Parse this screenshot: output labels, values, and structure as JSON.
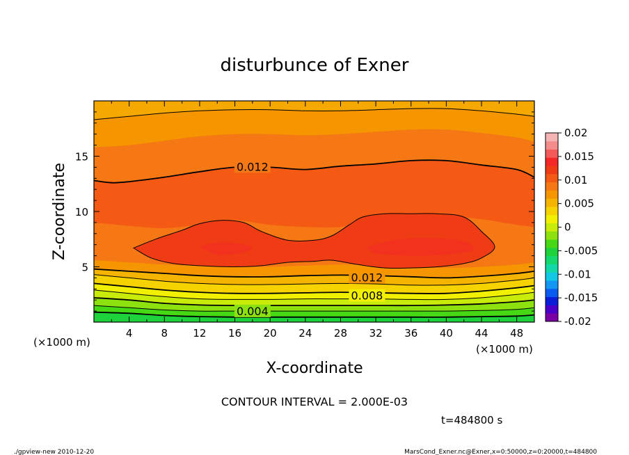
{
  "chart_data": {
    "type": "contour",
    "title": "disturbunce of Exner",
    "xlabel": "X-coordinate",
    "ylabel": "Z-coordinate",
    "x_unit_left": "(×1000 m)",
    "x_unit_right": "(×1000 m)",
    "xlim": [
      0,
      50
    ],
    "ylim": [
      0,
      20
    ],
    "x_ticks": [
      4,
      8,
      12,
      16,
      20,
      24,
      28,
      32,
      36,
      40,
      44,
      48
    ],
    "y_ticks": [
      5,
      10,
      15
    ],
    "colorbar_ticks": [
      "0.02",
      "0.015",
      "0.01",
      "0.005",
      "0",
      "-0.005",
      "-0.01",
      "-0.015",
      "-0.02"
    ],
    "colorbar_levels": [
      0.02,
      0.015,
      0.01,
      0.005,
      0,
      -0.005,
      -0.01,
      -0.015,
      -0.02
    ],
    "colorbar_range": [
      -0.02,
      0.02
    ],
    "colormap": [
      "#7b00a3",
      "#4a00c8",
      "#0a1ed8",
      "#0a5cf0",
      "#1496f5",
      "#10c8e6",
      "#12d8a8",
      "#14d86e",
      "#1ed23c",
      "#46d814",
      "#8ce10f",
      "#c8eb0a",
      "#f0f000",
      "#f5d200",
      "#f5b400",
      "#f59600",
      "#f57814",
      "#f55a14",
      "#f03c14",
      "#f52828",
      "#f55a5a",
      "#f58c8c",
      "#f5b4b4"
    ],
    "contour_interval": "CONTOUR INTERVAL = 2.000E-03",
    "contour_labels": [
      "0.012",
      "0.012",
      "0.008",
      "0.004"
    ],
    "time_label": "t=484800 s",
    "footer_left": "./gpview-new   2010-12-20",
    "footer_right": "MarsCond_Exner.nc@Exner,x=0:50000,z=0:20000,t=484800",
    "bands": [
      {
        "color": "#1ed23c",
        "z": [
          0.0,
          0.0,
          0.0,
          0.0,
          0.0,
          0.0,
          0.0,
          0.0,
          0.0,
          0.0,
          0.0,
          0.0,
          0.0,
          0.0
        ]
      },
      {
        "color": "#46d814",
        "z": [
          0.9,
          0.8,
          0.6,
          0.5,
          0.45,
          0.45,
          0.45,
          0.45,
          0.45,
          0.45,
          0.45,
          0.5,
          0.55,
          0.65
        ]
      },
      {
        "color": "#8ce10f",
        "z": [
          1.5,
          1.3,
          1.1,
          1.0,
          1.0,
          1.0,
          1.0,
          1.0,
          1.0,
          1.0,
          1.0,
          1.05,
          1.15,
          1.3
        ]
      },
      {
        "color": "#c8eb0a",
        "z": [
          2.2,
          2.0,
          1.7,
          1.55,
          1.5,
          1.5,
          1.5,
          1.5,
          1.5,
          1.5,
          1.55,
          1.65,
          1.85,
          2.0
        ]
      },
      {
        "color": "#f0f000",
        "z": [
          2.9,
          2.6,
          2.3,
          2.1,
          2.05,
          2.05,
          2.1,
          2.1,
          2.1,
          2.05,
          2.05,
          2.2,
          2.5,
          2.7
        ]
      },
      {
        "color": "#f5d200",
        "z": [
          3.5,
          3.2,
          2.9,
          2.7,
          2.6,
          2.6,
          2.65,
          2.7,
          2.65,
          2.6,
          2.6,
          2.8,
          3.1,
          3.3
        ]
      },
      {
        "color": "#f5b400",
        "z": [
          4.3,
          4.0,
          3.7,
          3.5,
          3.4,
          3.4,
          3.45,
          3.5,
          3.45,
          3.35,
          3.35,
          3.5,
          3.8,
          4.0
        ]
      },
      {
        "color": "#f59600",
        "z": [
          4.8,
          4.6,
          4.4,
          4.2,
          4.1,
          4.1,
          4.2,
          4.25,
          4.2,
          4.1,
          4.0,
          4.15,
          4.4,
          4.6
        ]
      },
      {
        "color": "#f57814",
        "z": [
          5.6,
          5.4,
          5.2,
          5.1,
          5.0,
          5.0,
          5.1,
          5.2,
          5.15,
          5.0,
          4.9,
          5.0,
          5.2,
          5.4
        ]
      },
      {
        "color": "#f55a14",
        "z": [
          9.0,
          8.7,
          8.5,
          8.8,
          9.2,
          8.8,
          8.6,
          8.6,
          9.2,
          9.6,
          9.6,
          9.3,
          8.8,
          8.6
        ]
      },
      {
        "color": "#f57814",
        "z": [
          12.8,
          12.7,
          13.1,
          13.6,
          14.0,
          14.0,
          13.8,
          14.1,
          14.3,
          14.6,
          14.6,
          14.2,
          13.8,
          13.1
        ]
      },
      {
        "color": "#f59600",
        "z": [
          15.8,
          16.0,
          16.4,
          16.8,
          17.0,
          17.0,
          16.9,
          17.0,
          17.2,
          17.4,
          17.4,
          17.1,
          16.7,
          16.3
        ]
      },
      {
        "color": "#f5a800",
        "z": [
          18.3,
          18.6,
          18.9,
          19.1,
          19.2,
          19.2,
          19.1,
          19.1,
          19.2,
          19.3,
          19.3,
          19.1,
          18.8,
          18.6
        ]
      }
    ],
    "inner_region": {
      "color": "#f03c14",
      "x": [
        4.5,
        7,
        10,
        12,
        14.5,
        17,
        19,
        22,
        25,
        27,
        29,
        30.5,
        33,
        36,
        39,
        42,
        44,
        45.5,
        44,
        42,
        39,
        36,
        33,
        30,
        27,
        25,
        22,
        19,
        16,
        12,
        9,
        6.5,
        4.5
      ],
      "z": [
        6.7,
        7.5,
        8.3,
        8.9,
        9.2,
        9.0,
        8.2,
        7.4,
        7.4,
        7.8,
        8.8,
        9.5,
        9.8,
        9.8,
        9.8,
        9.5,
        8.2,
        6.8,
        5.8,
        5.3,
        5.0,
        4.9,
        4.9,
        5.2,
        5.6,
        5.5,
        5.4,
        5.1,
        5.0,
        5.1,
        5.3,
        5.8,
        6.7
      ]
    },
    "core_regions": [
      {
        "color": "#f52828",
        "x": [
          12,
          14,
          16.5,
          18,
          16.5,
          14,
          12
        ],
        "z": [
          6.8,
          7.2,
          7.1,
          6.7,
          6.2,
          6.1,
          6.8
        ]
      },
      {
        "color": "#f52828",
        "x": [
          31,
          34,
          38,
          42,
          43,
          40,
          36,
          32,
          31
        ],
        "z": [
          6.8,
          7.4,
          7.6,
          7.3,
          6.5,
          6.1,
          6.0,
          6.2,
          6.8
        ]
      }
    ],
    "contour_lines": [
      {
        "weight": "thick",
        "x": [
          0,
          4,
          8,
          12,
          16,
          20,
          24,
          28,
          32,
          36,
          40,
          44,
          48,
          50
        ],
        "z": [
          0.9,
          0.8,
          0.6,
          0.5,
          0.45,
          0.45,
          0.45,
          0.45,
          0.45,
          0.45,
          0.45,
          0.5,
          0.55,
          0.65
        ]
      },
      {
        "weight": "thin",
        "x": [
          0,
          4,
          8,
          12,
          16,
          20,
          24,
          28,
          32,
          36,
          40,
          44,
          48,
          50
        ],
        "z": [
          1.5,
          1.3,
          1.1,
          1.0,
          1.0,
          1.0,
          1.0,
          1.0,
          1.0,
          1.0,
          1.0,
          1.05,
          1.15,
          1.3
        ]
      },
      {
        "weight": "thick",
        "x": [
          0,
          4,
          8,
          12,
          16,
          20,
          24,
          28,
          32,
          36,
          40,
          44,
          48,
          50
        ],
        "z": [
          2.2,
          2.0,
          1.7,
          1.55,
          1.5,
          1.5,
          1.5,
          1.5,
          1.5,
          1.5,
          1.55,
          1.65,
          1.85,
          2.0
        ]
      },
      {
        "weight": "thin",
        "x": [
          0,
          4,
          8,
          12,
          16,
          20,
          24,
          28,
          32,
          36,
          40,
          44,
          48,
          50
        ],
        "z": [
          2.9,
          2.6,
          2.3,
          2.1,
          2.05,
          2.05,
          2.1,
          2.1,
          2.1,
          2.05,
          2.05,
          2.2,
          2.5,
          2.7
        ]
      },
      {
        "weight": "thick",
        "x": [
          0,
          4,
          8,
          12,
          16,
          20,
          24,
          28,
          32,
          36,
          40,
          44,
          48,
          50
        ],
        "z": [
          3.5,
          3.2,
          2.9,
          2.7,
          2.6,
          2.6,
          2.65,
          2.7,
          2.65,
          2.6,
          2.6,
          2.8,
          3.1,
          3.3
        ]
      },
      {
        "weight": "thin",
        "x": [
          0,
          4,
          8,
          12,
          16,
          20,
          24,
          28,
          32,
          36,
          40,
          44,
          48,
          50
        ],
        "z": [
          4.3,
          4.0,
          3.7,
          3.5,
          3.4,
          3.4,
          3.45,
          3.5,
          3.45,
          3.35,
          3.35,
          3.5,
          3.8,
          4.0
        ]
      },
      {
        "weight": "thick",
        "x": [
          0,
          4,
          8,
          12,
          16,
          20,
          24,
          28,
          32,
          36,
          40,
          44,
          48,
          50
        ],
        "z": [
          4.8,
          4.6,
          4.4,
          4.2,
          4.1,
          4.1,
          4.2,
          4.25,
          4.2,
          4.1,
          4.0,
          4.15,
          4.4,
          4.6
        ]
      },
      {
        "weight": "thick",
        "x": [
          0,
          2,
          4,
          8,
          12,
          16,
          20,
          24,
          28,
          32,
          36,
          40,
          44,
          48,
          50
        ],
        "z": [
          12.8,
          12.6,
          12.7,
          13.1,
          13.6,
          14.0,
          14.0,
          13.8,
          14.1,
          14.3,
          14.6,
          14.6,
          14.2,
          13.8,
          13.1
        ]
      },
      {
        "weight": "thin",
        "x": [
          0,
          4,
          8,
          12,
          16,
          20,
          24,
          28,
          32,
          36,
          40,
          44,
          48,
          50
        ],
        "z": [
          18.3,
          18.6,
          18.9,
          19.1,
          19.2,
          19.2,
          19.1,
          19.1,
          19.2,
          19.3,
          19.3,
          19.1,
          18.8,
          18.6
        ]
      }
    ],
    "label_positions": [
      {
        "x": 18,
        "z": 14.0,
        "text_index": 0
      },
      {
        "x": 31,
        "z": 4.0,
        "text_index": 1
      },
      {
        "x": 31,
        "z": 2.35,
        "text_index": 2
      },
      {
        "x": 18,
        "z": 0.95,
        "text_index": 3
      }
    ]
  }
}
